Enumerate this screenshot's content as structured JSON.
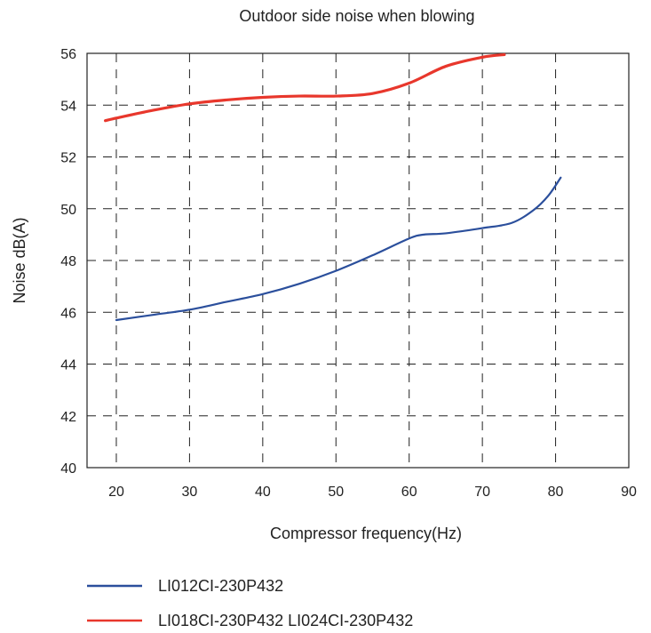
{
  "chart_data": {
    "type": "line",
    "title": "Outdoor side noise when blowing",
    "xlabel": "Compressor frequency(Hz)",
    "ylabel": "Noise dB(A)",
    "xlim": [
      16,
      90
    ],
    "ylim": [
      40,
      56
    ],
    "x_ticks": [
      20,
      30,
      40,
      50,
      60,
      70,
      80,
      90
    ],
    "y_ticks": [
      40,
      42,
      44,
      46,
      48,
      50,
      52,
      54,
      56
    ],
    "grid": true,
    "legend_position": "bottom-left",
    "series": [
      {
        "name": "LI012CI-230P432",
        "color": "#2b4f9c",
        "x": [
          20,
          25,
          30,
          35,
          40,
          45,
          50,
          55,
          60,
          62,
          65,
          70,
          74,
          77,
          79,
          80.7
        ],
        "y": [
          45.7,
          45.9,
          46.1,
          46.4,
          46.7,
          47.1,
          47.6,
          48.2,
          48.85,
          49.0,
          49.05,
          49.25,
          49.45,
          49.95,
          50.5,
          51.2
        ]
      },
      {
        "name": "LI018CI-230P432  LI024CI-230P432",
        "color": "#e8372c",
        "x": [
          18.5,
          20,
          25,
          30,
          35,
          40,
          45,
          50,
          55,
          60,
          65,
          70,
          73
        ],
        "y": [
          53.4,
          53.5,
          53.8,
          54.05,
          54.2,
          54.3,
          54.35,
          54.35,
          54.45,
          54.85,
          55.5,
          55.85,
          55.95
        ]
      }
    ]
  }
}
